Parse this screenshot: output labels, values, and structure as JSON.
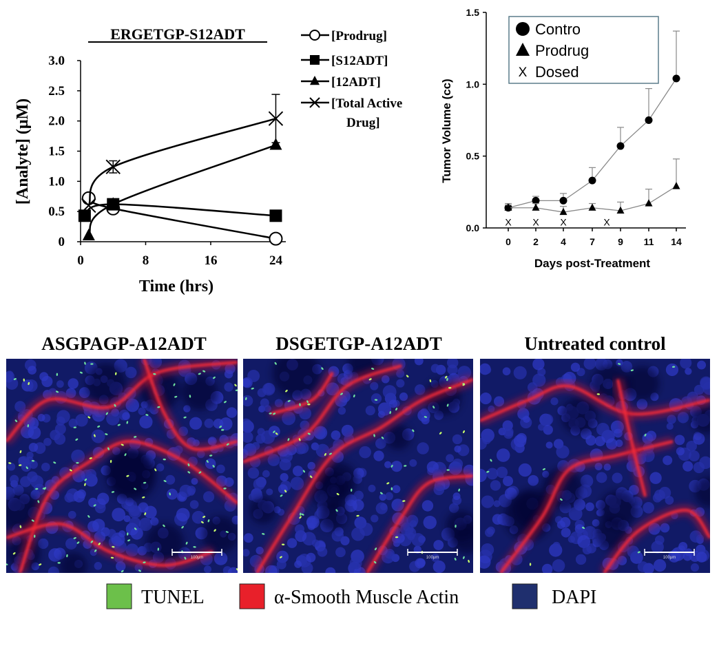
{
  "chart_data": [
    {
      "type": "line",
      "title": "ERGETGP-S12ADT",
      "xlabel": "Time (hrs)",
      "ylabel": "[Analyte] (μM)",
      "xlim": [
        0,
        25
      ],
      "ylim": [
        0,
        3.0
      ],
      "xticks": [
        0,
        8,
        16,
        24
      ],
      "yticks": [
        0,
        0.5,
        1.0,
        1.5,
        2.0,
        2.5,
        3.0
      ],
      "ytick_labels": [
        "0",
        "0.5",
        "1.0",
        "1.5",
        "2.0",
        "2.5",
        "3.0"
      ],
      "legend_position": "right",
      "series": [
        {
          "name": "[Prodrug]",
          "marker": "open-circle",
          "x": [
            1,
            4,
            24
          ],
          "y": [
            0.72,
            0.55,
            0.05
          ]
        },
        {
          "name": "[S12ADT]",
          "marker": "filled-square",
          "x": [
            0.5,
            4,
            24
          ],
          "y": [
            0.43,
            0.62,
            0.43
          ]
        },
        {
          "name": "[12ADT]",
          "marker": "filled-triangle",
          "x": [
            1,
            4,
            24
          ],
          "y": [
            0.1,
            0.62,
            1.6
          ]
        },
        {
          "name": "[Total Active Drug]",
          "legend_lines": [
            "[Total Active",
            "Drug]"
          ],
          "marker": "x",
          "x": [
            1,
            4,
            24
          ],
          "y": [
            0.6,
            1.24,
            2.04
          ],
          "err": [
            0.05,
            0.1,
            0.4
          ]
        }
      ]
    },
    {
      "type": "line",
      "title": "",
      "xlabel": "Days post-Treatment",
      "ylabel": "Tumor Volume (cc)",
      "categories": [
        "0",
        "2",
        "4",
        "7",
        "9",
        "11",
        "14"
      ],
      "ylim": [
        0,
        1.5
      ],
      "yticks": [
        0.0,
        0.5,
        1.0,
        1.5
      ],
      "ytick_labels": [
        "0.0",
        "0.5",
        "1.0",
        "1.5"
      ],
      "legend_position": "top-left",
      "series": [
        {
          "name": "Contro",
          "marker": "filled-circle",
          "values": [
            0.14,
            0.19,
            0.19,
            0.33,
            0.57,
            0.75,
            1.04
          ],
          "err": [
            0.03,
            0.03,
            0.05,
            0.09,
            0.13,
            0.22,
            0.33
          ]
        },
        {
          "name": "Prodrug",
          "marker": "filled-triangle",
          "values": [
            0.14,
            0.14,
            0.11,
            0.14,
            0.12,
            0.17,
            0.29
          ],
          "err": [
            0.02,
            0.03,
            0.04,
            0.03,
            0.06,
            0.1,
            0.19
          ]
        },
        {
          "name": "Dosed",
          "marker": "x",
          "points": [
            {
              "x": "0",
              "y": 0.04
            },
            {
              "x": "2",
              "y": 0.04
            },
            {
              "x": "4",
              "y": 0.04
            },
            {
              "x": "8",
              "y": 0.04
            }
          ]
        }
      ]
    }
  ],
  "micrographs": {
    "panels": [
      {
        "title": "ASGPAGP-A12ADT",
        "scale_bar": "100μm"
      },
      {
        "title": "DSGETGP-A12ADT",
        "scale_bar": "100μm"
      },
      {
        "title": "Untreated control",
        "scale_bar": "100μm"
      }
    ],
    "legend": [
      {
        "label": "TUNEL",
        "color": "#6cc04a"
      },
      {
        "label": "α-Smooth Muscle Actin",
        "color": "#e8202a"
      },
      {
        "label": "DAPI",
        "color": "#1f2f6e"
      }
    ]
  }
}
